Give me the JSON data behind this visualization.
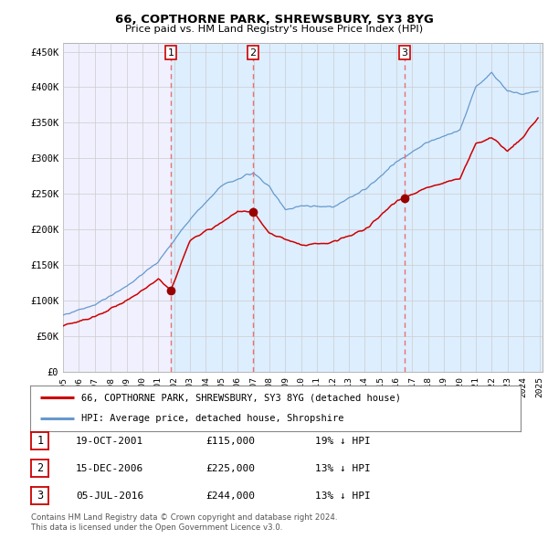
{
  "title": "66, COPTHORNE PARK, SHREWSBURY, SY3 8YG",
  "subtitle": "Price paid vs. HM Land Registry's House Price Index (HPI)",
  "ylabel_ticks": [
    "£0",
    "£50K",
    "£100K",
    "£150K",
    "£200K",
    "£250K",
    "£300K",
    "£350K",
    "£400K",
    "£450K"
  ],
  "ytick_values": [
    0,
    50000,
    100000,
    150000,
    200000,
    250000,
    300000,
    350000,
    400000,
    450000
  ],
  "ylim": [
    0,
    462000
  ],
  "xlim_start": 1995.0,
  "xlim_end": 2025.2,
  "sale_dates": [
    2001.8,
    2006.96,
    2016.51
  ],
  "sale_prices": [
    115000,
    225000,
    244000
  ],
  "sale_labels": [
    "1",
    "2",
    "3"
  ],
  "sale_dates_str": [
    "19-OCT-2001",
    "15-DEC-2006",
    "05-JUL-2016"
  ],
  "sale_prices_str": [
    "£115,000",
    "£225,000",
    "£244,000"
  ],
  "sale_hpi_pct": [
    "19% ↓ HPI",
    "13% ↓ HPI",
    "13% ↓ HPI"
  ],
  "legend_line1": "66, COPTHORNE PARK, SHREWSBURY, SY3 8YG (detached house)",
  "legend_line2": "HPI: Average price, detached house, Shropshire",
  "footer1": "Contains HM Land Registry data © Crown copyright and database right 2024.",
  "footer2": "This data is licensed under the Open Government Licence v3.0.",
  "line_color_red": "#cc0000",
  "line_color_blue": "#6699cc",
  "vline_color": "#e87070",
  "shade_color": "#ddeeff",
  "grid_color": "#cccccc",
  "background_color": "#ffffff",
  "plot_bg_color": "#f0f0ff",
  "xtick_years": [
    1995,
    1996,
    1997,
    1998,
    1999,
    2000,
    2001,
    2002,
    2003,
    2004,
    2005,
    2006,
    2007,
    2008,
    2009,
    2010,
    2011,
    2012,
    2013,
    2014,
    2015,
    2016,
    2017,
    2018,
    2019,
    2020,
    2021,
    2022,
    2023,
    2024,
    2025
  ]
}
